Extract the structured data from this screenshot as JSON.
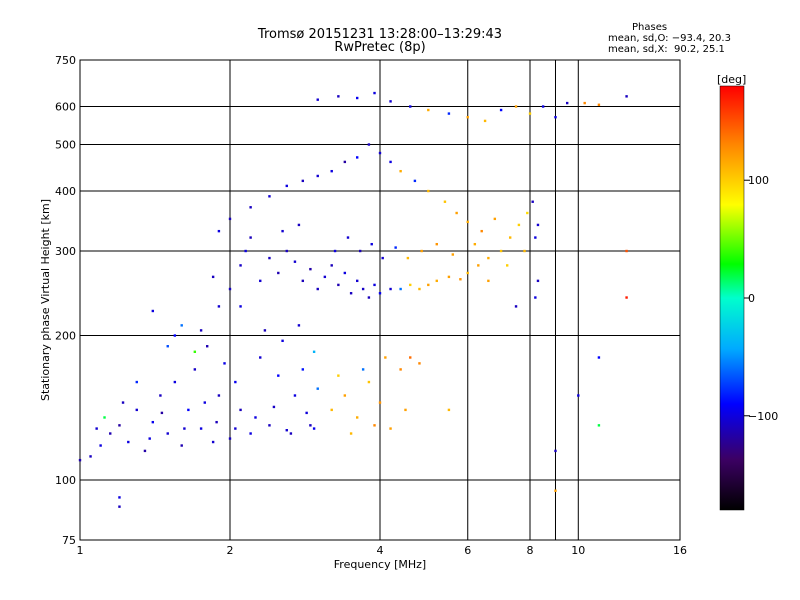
{
  "header": {
    "title_line1": "Tromsø 20151231 13:28:00–13:29:43",
    "title_line2": "RwPretec (8p)"
  },
  "phase_panel": {
    "heading": "Phases",
    "line_o": "mean, sd,O: −93.4, 20.3",
    "line_x": "mean, sd,X:  90.2, 25.1"
  },
  "colorbar": {
    "label": "[deg]",
    "ticks": [
      {
        "value": 100,
        "text": "100"
      },
      {
        "value": 0,
        "text": "0"
      },
      {
        "value": -100,
        "text": "−100"
      }
    ],
    "range": [
      -180,
      180
    ]
  },
  "chart_data": {
    "type": "scatter",
    "title": "Tromsø 20151231 13:28:00–13:29:43",
    "subtitle": "RwPretec (8p)",
    "xlabel": "Frequency [MHz]",
    "ylabel": "Stationary phase Virtual Height [km]",
    "x_scale": "log",
    "y_scale": "log",
    "xlim": [
      1,
      16
    ],
    "ylim": [
      75,
      750
    ],
    "x_ticks": [
      1,
      2,
      4,
      6,
      8,
      10,
      16
    ],
    "x_tick_labels": [
      "1",
      "2",
      "4",
      "6",
      "8",
      "10",
      "16"
    ],
    "y_ticks": [
      75,
      100,
      200,
      300,
      400,
      500,
      600,
      750
    ],
    "y_tick_labels": [
      "75",
      "100",
      "200",
      "300",
      "400",
      "500",
      "600",
      "750"
    ],
    "x_gridlines": [
      2,
      4,
      6,
      8,
      9,
      10
    ],
    "y_gridlines": [
      100,
      200,
      300,
      400,
      500,
      600
    ],
    "grid": true,
    "color_variable": "phase [deg]",
    "points": [
      [
        1.05,
        112,
        -110
      ],
      [
        1.1,
        118,
        -100
      ],
      [
        1.15,
        125,
        -115
      ],
      [
        1.2,
        130,
        -120
      ],
      [
        1.25,
        120,
        -100
      ],
      [
        1.3,
        140,
        -105
      ],
      [
        1.35,
        115,
        -118
      ],
      [
        1.4,
        132,
        -95
      ],
      [
        1.45,
        150,
        -110
      ],
      [
        1.5,
        125,
        -105
      ],
      [
        1.55,
        160,
        -100
      ],
      [
        1.6,
        118,
        -115
      ],
      [
        1.65,
        140,
        -90
      ],
      [
        1.7,
        170,
        -108
      ],
      [
        1.75,
        128,
        -100
      ],
      [
        1.8,
        190,
        -115
      ],
      [
        1.85,
        120,
        -105
      ],
      [
        1.9,
        150,
        -110
      ],
      [
        1.95,
        175,
        -98
      ],
      [
        2.0,
        122,
        -110
      ],
      [
        2.05,
        160,
        -95
      ],
      [
        2.1,
        140,
        -112
      ],
      [
        2.2,
        125,
        -100
      ],
      [
        2.3,
        180,
        -105
      ],
      [
        2.4,
        130,
        -110
      ],
      [
        2.5,
        165,
        -90
      ],
      [
        2.6,
        127,
        -105
      ],
      [
        2.7,
        150,
        -100
      ],
      [
        2.8,
        170,
        -85
      ],
      [
        2.9,
        130,
        -110
      ],
      [
        3.0,
        155,
        -60
      ],
      [
        1.12,
        135,
        20
      ],
      [
        1.3,
        160,
        -80
      ],
      [
        1.5,
        190,
        -70
      ],
      [
        1.6,
        210,
        -60
      ],
      [
        1.7,
        185,
        40
      ],
      [
        1.4,
        225,
        -100
      ],
      [
        1.55,
        200,
        -90
      ],
      [
        1.75,
        205,
        -110
      ],
      [
        1.9,
        230,
        -105
      ],
      [
        2.0,
        250,
        -110
      ],
      [
        2.1,
        280,
        -108
      ],
      [
        2.15,
        300,
        -100
      ],
      [
        2.2,
        320,
        -112
      ],
      [
        2.3,
        260,
        -105
      ],
      [
        2.4,
        290,
        -110
      ],
      [
        2.5,
        270,
        -115
      ],
      [
        2.6,
        300,
        -110
      ],
      [
        2.7,
        285,
        -105
      ],
      [
        2.8,
        260,
        -112
      ],
      [
        2.9,
        275,
        -118
      ],
      [
        3.0,
        250,
        -110
      ],
      [
        3.1,
        265,
        -105
      ],
      [
        3.2,
        280,
        -112
      ],
      [
        3.3,
        255,
        -115
      ],
      [
        3.4,
        270,
        -100
      ],
      [
        3.5,
        245,
        -110
      ],
      [
        3.6,
        260,
        -105
      ],
      [
        3.7,
        250,
        -108
      ],
      [
        3.8,
        240,
        -112
      ],
      [
        3.9,
        255,
        -100
      ],
      [
        4.0,
        245,
        -95
      ],
      [
        4.2,
        250,
        -105
      ],
      [
        4.4,
        250,
        -60
      ],
      [
        4.6,
        255,
        100
      ],
      [
        4.8,
        250,
        110
      ],
      [
        5.0,
        255,
        120
      ],
      [
        5.2,
        260,
        115
      ],
      [
        5.5,
        265,
        120
      ],
      [
        5.8,
        262,
        125
      ],
      [
        6.0,
        270,
        110
      ],
      [
        6.3,
        280,
        120
      ],
      [
        6.6,
        290,
        115
      ],
      [
        7.0,
        300,
        105
      ],
      [
        7.3,
        320,
        110
      ],
      [
        7.6,
        340,
        100
      ],
      [
        7.9,
        360,
        95
      ],
      [
        8.1,
        380,
        -110
      ],
      [
        8.3,
        340,
        -105
      ],
      [
        6.8,
        350,
        120
      ],
      [
        6.4,
        330,
        130
      ],
      [
        6.0,
        345,
        115
      ],
      [
        5.7,
        360,
        120
      ],
      [
        5.4,
        380,
        105
      ],
      [
        5.0,
        400,
        110
      ],
      [
        4.7,
        420,
        -80
      ],
      [
        4.4,
        440,
        115
      ],
      [
        4.2,
        460,
        -100
      ],
      [
        4.0,
        480,
        -105
      ],
      [
        3.8,
        500,
        -110
      ],
      [
        3.6,
        470,
        -90
      ],
      [
        3.4,
        460,
        -120
      ],
      [
        3.2,
        440,
        -100
      ],
      [
        3.0,
        430,
        -105
      ],
      [
        2.8,
        420,
        -110
      ],
      [
        2.6,
        410,
        -100
      ],
      [
        2.4,
        390,
        -105
      ],
      [
        2.2,
        370,
        -110
      ],
      [
        2.0,
        350,
        -112
      ],
      [
        1.9,
        330,
        -100
      ],
      [
        3.0,
        620,
        -105
      ],
      [
        3.3,
        630,
        -110
      ],
      [
        3.6,
        625,
        -95
      ],
      [
        3.9,
        640,
        -100
      ],
      [
        4.2,
        615,
        -105
      ],
      [
        4.6,
        600,
        -100
      ],
      [
        5.0,
        590,
        115
      ],
      [
        5.5,
        580,
        -80
      ],
      [
        6.0,
        570,
        120
      ],
      [
        6.5,
        560,
        110
      ],
      [
        7.0,
        590,
        -90
      ],
      [
        7.5,
        600,
        120
      ],
      [
        8.0,
        580,
        100
      ],
      [
        8.5,
        600,
        -100
      ],
      [
        9.0,
        570,
        -100
      ],
      [
        9.5,
        610,
        -110
      ],
      [
        10.3,
        610,
        130
      ],
      [
        11.0,
        605,
        130
      ],
      [
        12.5,
        630,
        -110
      ],
      [
        12.5,
        300,
        150
      ],
      [
        12.5,
        240,
        170
      ],
      [
        11.0,
        180,
        -90
      ],
      [
        11.0,
        130,
        20
      ],
      [
        10.0,
        150,
        -100
      ],
      [
        9.0,
        115,
        -110
      ],
      [
        9.0,
        95,
        120
      ],
      [
        1.2,
        92,
        -100
      ],
      [
        1.2,
        88,
        -110
      ],
      [
        3.2,
        140,
        110
      ],
      [
        3.4,
        150,
        120
      ],
      [
        3.6,
        135,
        115
      ],
      [
        3.8,
        160,
        105
      ],
      [
        4.0,
        145,
        125
      ],
      [
        3.5,
        125,
        110
      ],
      [
        3.9,
        130,
        130
      ],
      [
        4.2,
        128,
        120
      ],
      [
        4.4,
        170,
        130
      ],
      [
        4.6,
        180,
        140
      ],
      [
        4.8,
        175,
        130
      ],
      [
        4.5,
        140,
        120
      ],
      [
        5.5,
        140,
        110
      ],
      [
        3.3,
        165,
        100
      ],
      [
        3.7,
        170,
        -60
      ],
      [
        4.1,
        180,
        120
      ],
      [
        1.0,
        110,
        -115
      ],
      [
        1.08,
        128,
        -105
      ],
      [
        1.22,
        145,
        -110
      ],
      [
        1.38,
        122,
        -100
      ],
      [
        1.46,
        138,
        -120
      ],
      [
        1.62,
        128,
        -105
      ],
      [
        1.78,
        145,
        -100
      ],
      [
        1.88,
        132,
        -112
      ],
      [
        2.05,
        128,
        -105
      ],
      [
        2.25,
        135,
        -100
      ],
      [
        2.45,
        142,
        -108
      ],
      [
        2.65,
        125,
        -110
      ],
      [
        2.85,
        138,
        -102
      ],
      [
        2.95,
        128,
        -95
      ],
      [
        2.35,
        205,
        -112
      ],
      [
        2.55,
        195,
        -100
      ],
      [
        2.75,
        210,
        -105
      ],
      [
        2.95,
        185,
        -40
      ],
      [
        1.85,
        265,
        -110
      ],
      [
        2.1,
        230,
        -100
      ],
      [
        2.55,
        330,
        -105
      ],
      [
        2.75,
        340,
        -110
      ],
      [
        3.25,
        300,
        -100
      ],
      [
        3.45,
        320,
        -105
      ],
      [
        3.65,
        300,
        -112
      ],
      [
        3.85,
        310,
        -100
      ],
      [
        4.05,
        290,
        -105
      ],
      [
        4.3,
        305,
        -80
      ],
      [
        4.55,
        290,
        110
      ],
      [
        4.85,
        300,
        120
      ],
      [
        5.2,
        310,
        125
      ],
      [
        5.6,
        295,
        120
      ],
      [
        6.2,
        310,
        115
      ],
      [
        6.6,
        260,
        120
      ],
      [
        7.2,
        280,
        100
      ],
      [
        7.8,
        300,
        110
      ],
      [
        8.2,
        320,
        -100
      ],
      [
        8.3,
        260,
        -110
      ],
      [
        8.2,
        240,
        -100
      ],
      [
        7.5,
        230,
        -110
      ]
    ]
  }
}
